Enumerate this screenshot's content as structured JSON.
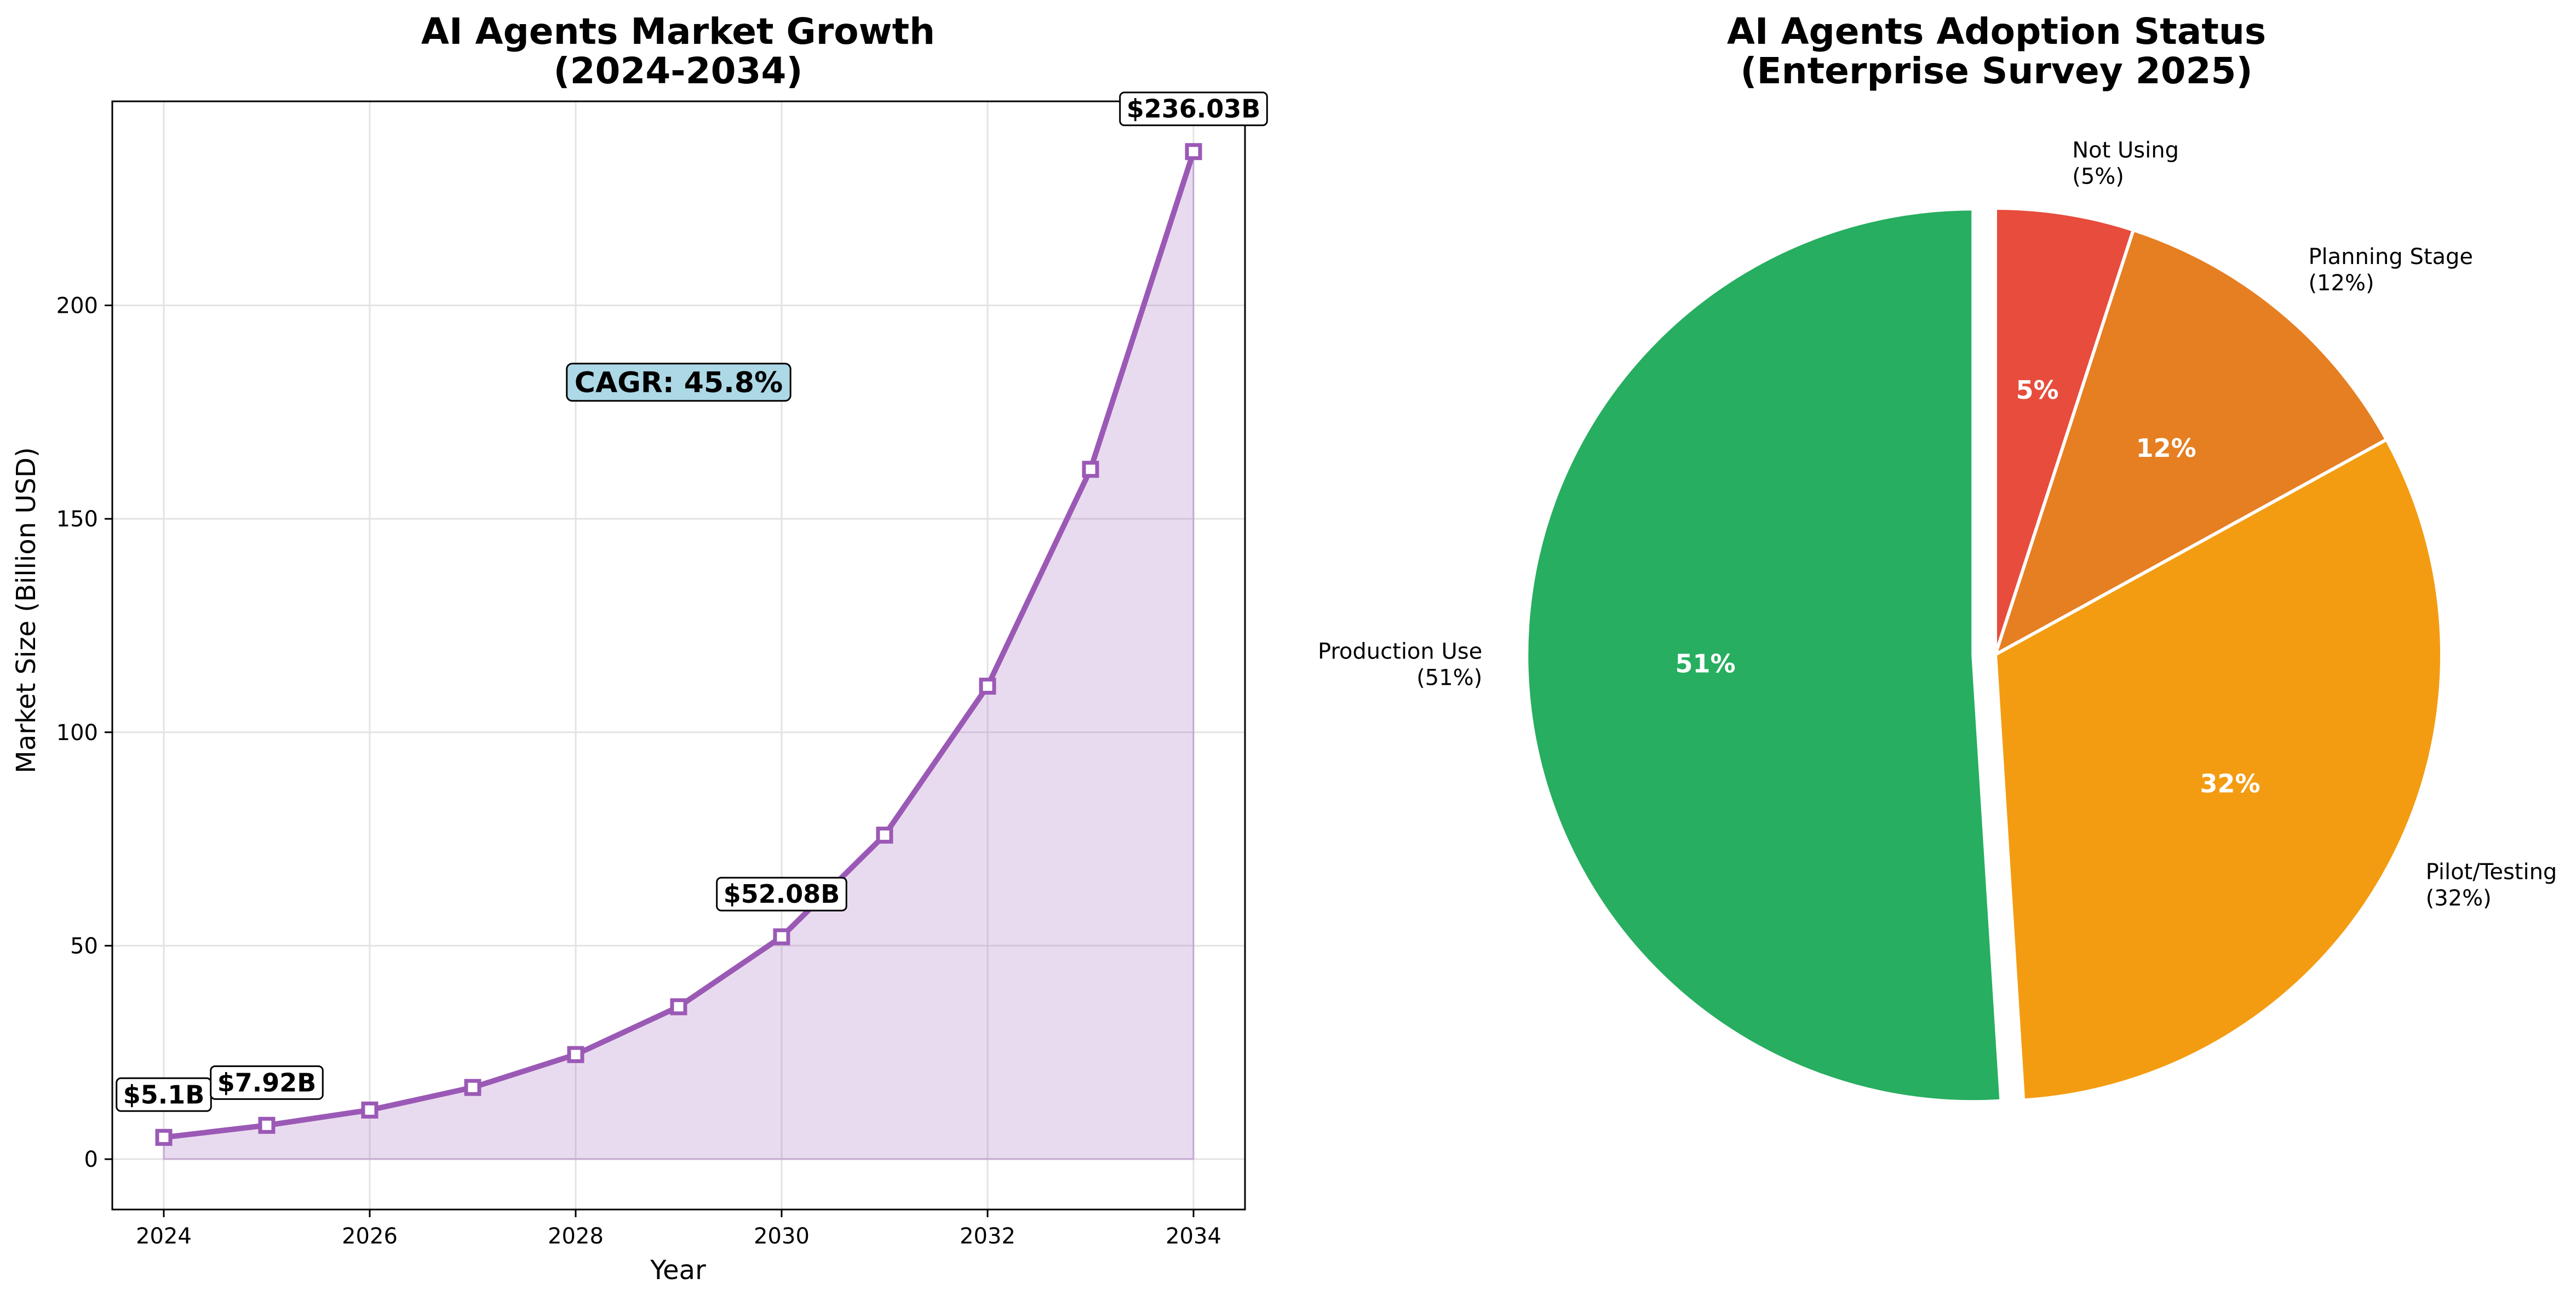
{
  "chart_data": [
    {
      "type": "line",
      "title_lines": [
        "AI Agents Market Growth",
        "(2024-2034)"
      ],
      "xlabel": "Year",
      "ylabel": "Market Size (Billion USD)",
      "x": [
        2024,
        2025,
        2026,
        2027,
        2028,
        2029,
        2030,
        2031,
        2032,
        2033,
        2034
      ],
      "series": [
        {
          "values": [
            5.1,
            7.92,
            11.5,
            16.8,
            24.5,
            35.7,
            52.08,
            75.9,
            110.8,
            161.6,
            236.03
          ],
          "color": "#9b59b6",
          "marker": "square-hollow",
          "fill_under": true
        }
      ],
      "xticks": [
        "2024",
        "2026",
        "2028",
        "2030",
        "2032",
        "2034"
      ],
      "xtick_values": [
        2024,
        2026,
        2028,
        2030,
        2032,
        2034
      ],
      "yticks": [
        "0",
        "50",
        "100",
        "150",
        "200"
      ],
      "ytick_values": [
        0,
        50,
        100,
        150,
        200
      ],
      "xlim": [
        2023.5,
        2034.5
      ],
      "ylim": [
        -11.8,
        247.8
      ],
      "grid": true,
      "annotations": [
        {
          "x": 2024,
          "y": 5.1,
          "text": "$5.1B"
        },
        {
          "x": 2025,
          "y": 7.92,
          "text": "$7.92B"
        },
        {
          "x": 2030,
          "y": 52.08,
          "text": "$52.08B"
        },
        {
          "x": 2034,
          "y": 236.03,
          "text": "$236.03B"
        }
      ],
      "cagr_label": {
        "text": "CAGR: 45.8%",
        "x": 2029,
        "y": 182,
        "background": "#add8e6"
      }
    },
    {
      "type": "pie",
      "title_lines": [
        "AI Agents Adoption Status",
        "(Enterprise Survey 2025)"
      ],
      "start_angle_deg": 90,
      "clockwise": true,
      "slices": [
        {
          "label_lines": [
            "Not Using",
            "(5%)"
          ],
          "value": 5,
          "pct_text": "5%",
          "color": "#e74c3c",
          "explode": 0
        },
        {
          "label_lines": [
            "Planning Stage",
            "(12%)"
          ],
          "value": 12,
          "pct_text": "12%",
          "color": "#e67e22",
          "explode": 0
        },
        {
          "label_lines": [
            "Pilot/Testing",
            "(32%)"
          ],
          "value": 32,
          "pct_text": "32%",
          "color": "#f39c12",
          "explode": 0
        },
        {
          "label_lines": [
            "Production Use",
            "(51%)"
          ],
          "value": 51,
          "pct_text": "51%",
          "color": "#27ae60",
          "explode": 0.05
        }
      ]
    }
  ]
}
